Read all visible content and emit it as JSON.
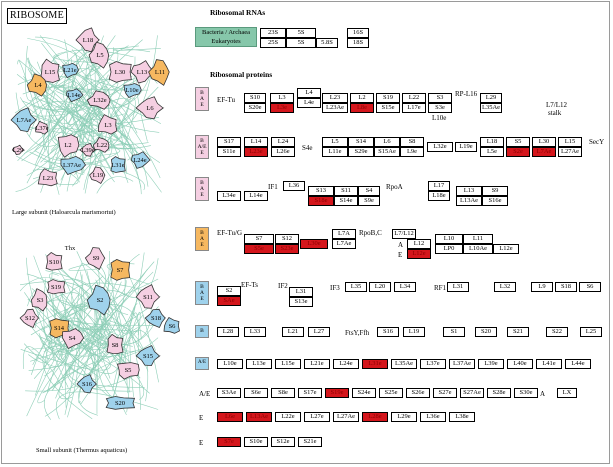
{
  "title": "RIBOSOME",
  "colors": {
    "pink": "#f5cfe2",
    "blue": "#9fd2ec",
    "orange": "#f6b860",
    "green": "#86c7aa",
    "red": "#d4161c"
  },
  "large_subunit": {
    "caption": "Large subunit (Haloarcula marismortui)",
    "proteins": [
      "L18",
      "L5",
      "L30",
      "L13",
      "L15",
      "L21e",
      "L32e",
      "L11",
      "L4",
      "L14e",
      "L10e",
      "L6",
      "L7Ae",
      "L37e",
      "L37Ae",
      "L3",
      "L2",
      "L39e",
      "L31e",
      "L24e",
      "L22",
      "L19",
      "L23",
      "L29"
    ]
  },
  "small_subunit": {
    "caption": "Small subunit (Thermus aquaticus)",
    "proteins": [
      "Thx",
      "S10",
      "S9",
      "S19",
      "S3",
      "S14",
      "S7",
      "S2",
      "S11",
      "S18",
      "S6",
      "S12",
      "S4",
      "S8",
      "S5",
      "S15",
      "S16",
      "S20"
    ]
  },
  "rrna": {
    "heading": "Ribosomal RNAs",
    "label_line1": "Bacteria / Archaea",
    "label_line2": "Eukaryotes",
    "row1": [
      "23S",
      "5S",
      "16S"
    ],
    "row2": [
      "25S",
      "5S",
      "5.8S",
      "18S"
    ]
  },
  "proteins_heading": "Ribosomal proteins",
  "row1": {
    "tag": "B\nA\nE",
    "factor": "EF-Tu",
    "top": [
      "S10",
      "L3",
      "L4",
      "L23",
      "L2",
      "S19",
      "L22",
      "S3"
    ],
    "bottom": [
      "S20e",
      "L3e",
      "L4e",
      "L23Ae",
      "L8e",
      "S15e",
      "L17e",
      "S3e"
    ],
    "rp": "RP-L16",
    "l29": "L29",
    "l35ae": "L35Ae",
    "l10e": "L10e",
    "l7l12": "L7/L12",
    "stalk": "stalk"
  },
  "row2": {
    "tag": "B\nA/E\nE",
    "top": [
      "S17",
      "L14",
      "L24",
      "L5",
      "S14",
      "L6",
      "S8",
      "L18",
      "S5",
      "L30",
      "L15"
    ],
    "bottom": [
      "S11e",
      "L23e",
      "L26e",
      "S4e",
      "L11e",
      "S29e",
      "S15Ae",
      "L9e",
      "L32e",
      "L19e",
      "L5e",
      "S2e",
      "L7Ae",
      "L27Ae"
    ],
    "secy": "SecY"
  },
  "row3": {
    "tag": "B\nA\nE",
    "if1": "IF1",
    "top": [
      "L36",
      "S13",
      "S11",
      "S4",
      "L17",
      "L13",
      "S9"
    ],
    "bottom": [
      "L34e",
      "L14e",
      "S18e",
      "S14e",
      "S9e",
      "L18e",
      "L13Ae",
      "S16e"
    ],
    "rpoa": "RpoA"
  },
  "row4": {
    "tag": "B\nA\nE",
    "factor": "EF-Tu/G",
    "top": [
      "S7",
      "S12",
      "L7A",
      "L7/L12",
      "L10",
      "L11"
    ],
    "bottom": [
      "S5e",
      "S23e",
      "L30e",
      "L7Ae",
      "L12",
      "LP0",
      "L10Ae",
      "L12e",
      "L12e"
    ],
    "rpobc": "RpoB,C",
    "a_label": "A",
    "e_label": "E"
  },
  "row5": {
    "tag": "B\nA\nE",
    "ef_ts": "EF-Ts",
    "if2": "IF2",
    "if3": "IF3",
    "rf1": "RF1",
    "cells_a": [
      "S2",
      "SAe"
    ],
    "cells_b": [
      "L31",
      "S13e"
    ],
    "cells_c": [
      "L35",
      "L20",
      "L34"
    ],
    "cells_d": [
      "L31",
      "L32",
      "L9",
      "S18",
      "S6"
    ]
  },
  "row6": {
    "tag": "B",
    "fbay": "FtsY,Ffh",
    "cells": [
      "L28",
      "L33",
      "L21",
      "L27",
      "S16",
      "L19",
      "S1",
      "S20",
      "S21",
      "S22",
      "L25"
    ]
  },
  "row7": {
    "tag": "A/E",
    "cells": [
      "L10e",
      "L13e",
      "L15e",
      "L21e",
      "L24e",
      "L31e",
      "L35Ae",
      "L37e",
      "L37Ae",
      "L39e",
      "L40e",
      "L41e",
      "L44e"
    ]
  },
  "row8": {
    "label": "A/E",
    "cells": [
      "S3Ae",
      "S6e",
      "S8e",
      "S17e",
      "S19e",
      "S24e",
      "S25e",
      "S26e",
      "S27e",
      "S27Ae",
      "S28e",
      "S30e"
    ],
    "a_label": "A",
    "lx": "LX"
  },
  "row9": {
    "label": "E",
    "cells": [
      "L6e",
      "L13Ae",
      "L22e",
      "L27e",
      "L27Ae",
      "L28e",
      "L29e",
      "L36e",
      "L38e"
    ]
  },
  "row10": {
    "label": "E",
    "cells": [
      "S7e",
      "S10e",
      "S12e",
      "S21e"
    ]
  }
}
